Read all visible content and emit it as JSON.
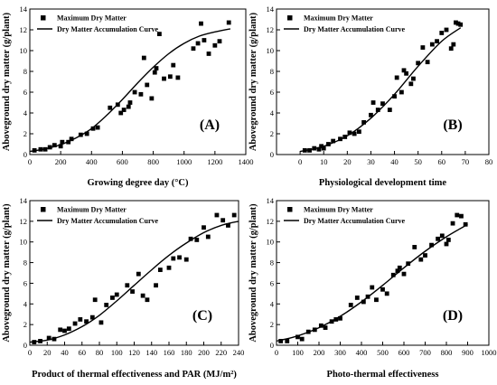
{
  "chart_data": [
    {
      "type": "scatter",
      "panel_label": "(A)",
      "xlabel": "Growing degree day (°C)",
      "ylabel": "Aboveground dry matter (g/plant)",
      "xlim": [
        0,
        1400
      ],
      "ylim": [
        0,
        14
      ],
      "xticks": [
        0,
        200,
        400,
        600,
        800,
        1000,
        1200,
        1400
      ],
      "yticks": [
        0,
        2,
        4,
        6,
        8,
        10,
        12,
        14
      ],
      "grid": false,
      "legend_position": "top-left",
      "series": [
        {
          "name": "Maximum Dry Matter",
          "marker": "square",
          "x": [
            30,
            70,
            100,
            130,
            160,
            200,
            210,
            250,
            270,
            330,
            370,
            410,
            440,
            520,
            570,
            590,
            610,
            640,
            650,
            680,
            720,
            740,
            760,
            790,
            810,
            820,
            840,
            870,
            910,
            930,
            960,
            1060,
            1090,
            1110,
            1130,
            1160,
            1200,
            1230,
            1290
          ],
          "y": [
            0.4,
            0.5,
            0.5,
            0.7,
            0.9,
            0.8,
            1.2,
            1.2,
            1.5,
            1.9,
            2.0,
            2.5,
            2.6,
            4.5,
            4.8,
            4.0,
            4.3,
            4.6,
            5.0,
            6.0,
            5.8,
            9.3,
            6.7,
            5.4,
            7.9,
            8.3,
            11.6,
            7.3,
            7.5,
            8.6,
            7.4,
            10.2,
            10.7,
            12.6,
            11.0,
            9.7,
            10.5,
            10.9,
            12.7
          ]
        },
        {
          "name": "Dry Matter Accumulation Curve",
          "marker": "line",
          "x": [
            0,
            100,
            200,
            300,
            400,
            500,
            600,
            700,
            800,
            900,
            1000,
            1100,
            1200,
            1300
          ],
          "y": [
            0.3,
            0.55,
            0.95,
            1.6,
            2.5,
            3.8,
            5.3,
            6.9,
            8.4,
            9.7,
            10.7,
            11.4,
            11.8,
            12.1
          ]
        }
      ]
    },
    {
      "type": "scatter",
      "panel_label": "(B)",
      "xlabel": "Physiological development time",
      "ylabel": "Aboveground dry matter (g/plant)",
      "xlim": [
        -10,
        80
      ],
      "ylim": [
        0,
        14
      ],
      "xticks": [
        0,
        10,
        20,
        30,
        40,
        50,
        60,
        70,
        80
      ],
      "yticks": [
        0,
        2,
        4,
        6,
        8,
        10,
        12,
        14
      ],
      "grid": false,
      "legend_position": "top-left",
      "series": [
        {
          "name": "Maximum Dry Matter",
          "marker": "square",
          "x": [
            2,
            4,
            6,
            8,
            9,
            10,
            12,
            14,
            17,
            19,
            21,
            23,
            25,
            27,
            30,
            31,
            33,
            35,
            38,
            40,
            41,
            43,
            44,
            45,
            47,
            48,
            50,
            52,
            54,
            56,
            58,
            60,
            62,
            64,
            65,
            66,
            67,
            68
          ],
          "y": [
            0.4,
            0.4,
            0.6,
            0.5,
            0.8,
            0.6,
            1.0,
            1.3,
            1.5,
            1.7,
            2.1,
            2.0,
            2.2,
            3.1,
            3.8,
            5.0,
            4.3,
            4.9,
            4.3,
            5.6,
            7.4,
            6.0,
            8.1,
            7.8,
            6.8,
            7.3,
            8.8,
            10.3,
            8.9,
            10.6,
            10.9,
            11.7,
            12.0,
            10.2,
            10.6,
            12.7,
            12.6,
            12.5
          ]
        },
        {
          "name": "Dry Matter Accumulation Curve",
          "marker": "line",
          "x": [
            0,
            10,
            20,
            30,
            40,
            50,
            60,
            68
          ],
          "y": [
            0.3,
            0.8,
            1.8,
            3.5,
            5.8,
            8.5,
            10.9,
            12.2
          ]
        }
      ]
    },
    {
      "type": "scatter",
      "panel_label": "(C)",
      "xlabel": "Product of thermal effectiveness and PAR (MJ/m²)",
      "ylabel": "Aboveground dry matter (g/plant)",
      "xlim": [
        0,
        240
      ],
      "ylim": [
        0,
        14
      ],
      "xticks": [
        0,
        20,
        40,
        60,
        80,
        100,
        120,
        140,
        160,
        180,
        200,
        220,
        240
      ],
      "yticks": [
        0,
        2,
        4,
        6,
        8,
        10,
        12,
        14
      ],
      "grid": false,
      "legend_position": "top-left",
      "series": [
        {
          "name": "Maximum Dry Matter",
          "marker": "square",
          "x": [
            5,
            12,
            22,
            28,
            35,
            40,
            45,
            52,
            58,
            65,
            72,
            75,
            82,
            88,
            95,
            100,
            112,
            118,
            125,
            130,
            135,
            145,
            150,
            160,
            165,
            172,
            180,
            185,
            192,
            200,
            205,
            215,
            222,
            228,
            235
          ],
          "y": [
            0.3,
            0.4,
            0.7,
            0.6,
            1.5,
            1.4,
            1.6,
            2.1,
            2.5,
            2.3,
            2.7,
            4.4,
            2.2,
            3.9,
            4.6,
            4.9,
            5.8,
            5.2,
            6.9,
            4.8,
            4.4,
            5.8,
            7.3,
            7.5,
            8.4,
            8.5,
            8.3,
            10.3,
            10.2,
            11.4,
            10.5,
            12.6,
            12.1,
            11.6,
            12.6
          ]
        },
        {
          "name": "Dry Matter Accumulation Curve",
          "marker": "line",
          "x": [
            0,
            20,
            40,
            60,
            80,
            100,
            120,
            140,
            160,
            180,
            200,
            220,
            240
          ],
          "y": [
            0.3,
            0.5,
            1.0,
            1.8,
            2.9,
            4.3,
            5.8,
            7.3,
            8.7,
            9.9,
            10.9,
            11.6,
            12.0
          ]
        }
      ]
    },
    {
      "type": "scatter",
      "panel_label": "(D)",
      "xlabel": "Photo-thermal effectiveness",
      "ylabel": "Aboveground dry matter (g/plant)",
      "xlim": [
        0,
        1000
      ],
      "ylim": [
        0,
        14
      ],
      "xticks": [
        0,
        100,
        200,
        300,
        400,
        500,
        600,
        700,
        800,
        900,
        1000
      ],
      "yticks": [
        0,
        2,
        4,
        6,
        8,
        10,
        12,
        14
      ],
      "grid": false,
      "legend_position": "top-left",
      "series": [
        {
          "name": "Maximum Dry Matter",
          "marker": "square",
          "x": [
            20,
            50,
            100,
            120,
            150,
            180,
            210,
            230,
            260,
            280,
            300,
            350,
            380,
            410,
            430,
            450,
            470,
            500,
            520,
            550,
            570,
            580,
            600,
            620,
            650,
            680,
            700,
            730,
            760,
            780,
            800,
            810,
            830,
            850,
            870,
            890
          ],
          "y": [
            0.4,
            0.4,
            0.8,
            0.6,
            1.3,
            1.5,
            1.9,
            1.7,
            2.3,
            2.5,
            2.6,
            3.9,
            4.6,
            4.2,
            4.7,
            5.6,
            4.4,
            5.4,
            5.0,
            6.8,
            7.2,
            7.5,
            6.9,
            7.9,
            9.5,
            8.3,
            8.7,
            9.7,
            10.3,
            10.6,
            9.8,
            10.2,
            11.8,
            12.6,
            12.5,
            11.7
          ]
        },
        {
          "name": "Dry Matter Accumulation Curve",
          "marker": "line",
          "x": [
            0,
            100,
            200,
            300,
            400,
            500,
            600,
            700,
            800,
            900
          ],
          "y": [
            0.4,
            0.9,
            1.7,
            2.8,
            4.2,
            5.8,
            7.5,
            9.1,
            10.5,
            11.7
          ]
        }
      ]
    }
  ]
}
